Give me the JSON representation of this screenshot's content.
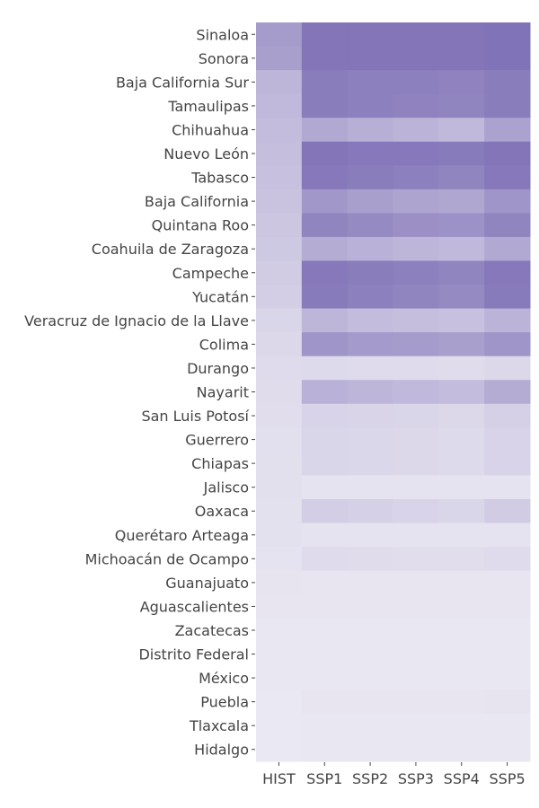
{
  "chart_data": {
    "type": "heatmap",
    "title": "",
    "xlabel": "",
    "ylabel": "",
    "x": [
      "HIST",
      "SSP1",
      "SSP2",
      "SSP3",
      "SSP4",
      "SSP5"
    ],
    "y": [
      "Sinaloa",
      "Sonora",
      "Baja California Sur",
      "Tamaulipas",
      "Chihuahua",
      "Nuevo León",
      "Tabasco",
      "Baja California",
      "Quintana Roo",
      "Coahuila de Zaragoza",
      "Campeche",
      "Yucatán",
      "Veracruz de Ignacio de la Llave",
      "Colima",
      "Durango",
      "Nayarit",
      "San Luis Potosí",
      "Guerrero",
      "Chiapas",
      "Jalisco",
      "Oaxaca",
      "Querétaro Arteaga",
      "Michoacán de Ocampo",
      "Guanajuato",
      "Aguascalientes",
      "Zacatecas",
      "Distrito Federal",
      "México",
      "Puebla",
      "Tlaxcala",
      "Hidalgo"
    ],
    "z": [
      [
        0.62,
        0.92,
        0.92,
        0.92,
        0.92,
        0.94
      ],
      [
        0.6,
        0.92,
        0.92,
        0.92,
        0.92,
        0.94
      ],
      [
        0.42,
        0.86,
        0.84,
        0.84,
        0.82,
        0.86
      ],
      [
        0.4,
        0.86,
        0.84,
        0.82,
        0.8,
        0.86
      ],
      [
        0.38,
        0.52,
        0.48,
        0.44,
        0.4,
        0.58
      ],
      [
        0.36,
        0.92,
        0.9,
        0.9,
        0.88,
        0.92
      ],
      [
        0.34,
        0.9,
        0.86,
        0.84,
        0.8,
        0.9
      ],
      [
        0.32,
        0.66,
        0.6,
        0.56,
        0.54,
        0.68
      ],
      [
        0.3,
        0.8,
        0.76,
        0.72,
        0.7,
        0.8
      ],
      [
        0.28,
        0.5,
        0.46,
        0.42,
        0.4,
        0.52
      ],
      [
        0.26,
        0.9,
        0.86,
        0.84,
        0.8,
        0.9
      ],
      [
        0.24,
        0.88,
        0.84,
        0.8,
        0.76,
        0.88
      ],
      [
        0.18,
        0.42,
        0.38,
        0.36,
        0.34,
        0.44
      ],
      [
        0.16,
        0.68,
        0.64,
        0.62,
        0.6,
        0.68
      ],
      [
        0.14,
        0.15,
        0.14,
        0.14,
        0.13,
        0.16
      ],
      [
        0.13,
        0.46,
        0.42,
        0.4,
        0.38,
        0.5
      ],
      [
        0.12,
        0.2,
        0.19,
        0.18,
        0.16,
        0.22
      ],
      [
        0.11,
        0.18,
        0.17,
        0.16,
        0.15,
        0.2
      ],
      [
        0.1,
        0.18,
        0.17,
        0.16,
        0.15,
        0.2
      ],
      [
        0.1,
        0.08,
        0.08,
        0.08,
        0.08,
        0.08
      ],
      [
        0.09,
        0.24,
        0.22,
        0.2,
        0.18,
        0.26
      ],
      [
        0.09,
        0.08,
        0.08,
        0.08,
        0.08,
        0.08
      ],
      [
        0.08,
        0.14,
        0.13,
        0.12,
        0.12,
        0.14
      ],
      [
        0.07,
        0.06,
        0.06,
        0.06,
        0.06,
        0.06
      ],
      [
        0.06,
        0.06,
        0.06,
        0.06,
        0.06,
        0.06
      ],
      [
        0.05,
        0.05,
        0.05,
        0.05,
        0.05,
        0.05
      ],
      [
        0.05,
        0.05,
        0.05,
        0.05,
        0.05,
        0.05
      ],
      [
        0.05,
        0.05,
        0.05,
        0.05,
        0.05,
        0.05
      ],
      [
        0.04,
        0.06,
        0.06,
        0.06,
        0.06,
        0.07
      ],
      [
        0.04,
        0.05,
        0.05,
        0.05,
        0.05,
        0.05
      ],
      [
        0.04,
        0.05,
        0.05,
        0.05,
        0.05,
        0.05
      ]
    ],
    "colorscale": [
      "#efedf5",
      "#7a6bb3"
    ],
    "colorbar": false,
    "grid": false
  }
}
